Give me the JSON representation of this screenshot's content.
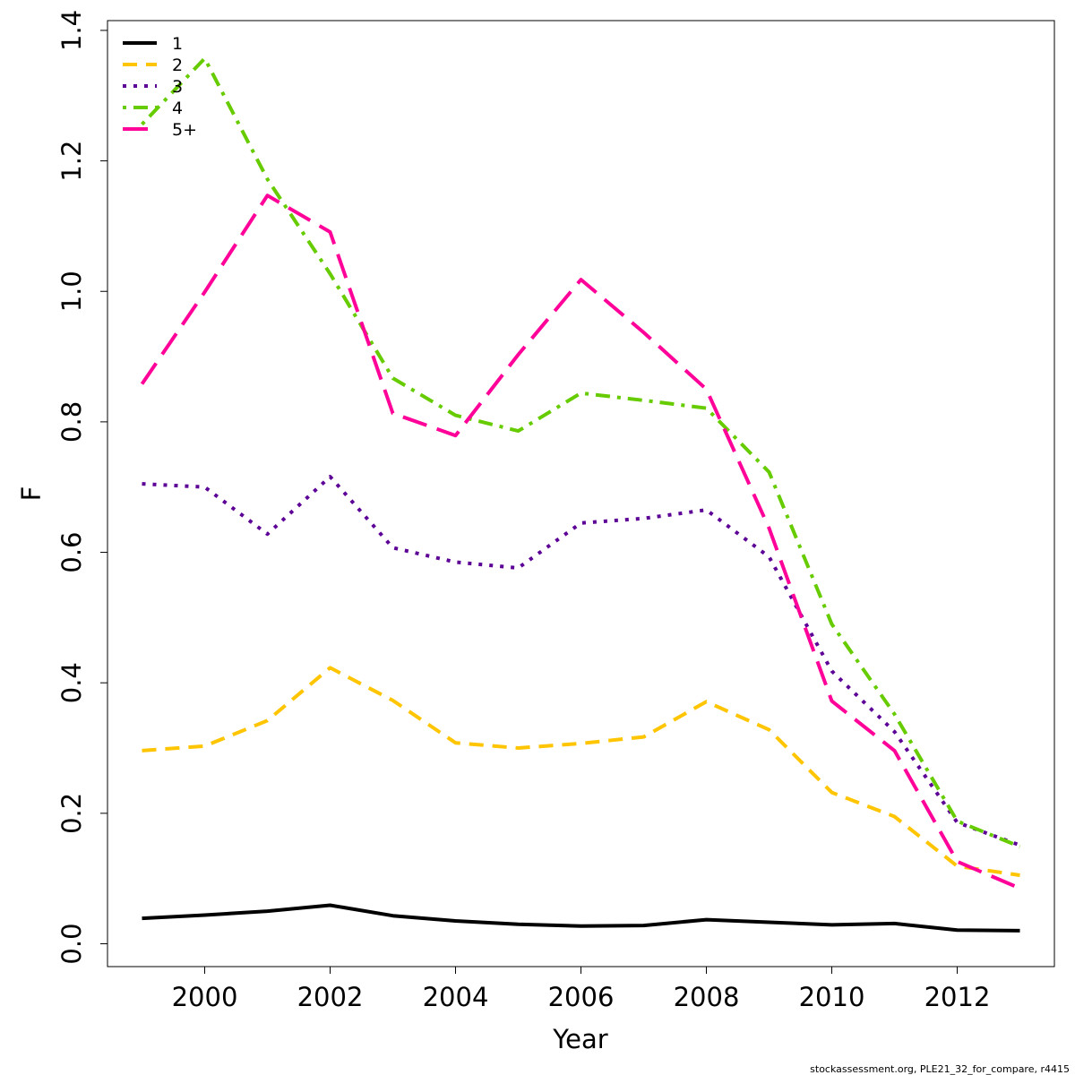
{
  "chart_data": {
    "type": "line",
    "xlabel": "Year",
    "ylabel": "F",
    "xlim": [
      1998.45,
      2013.55
    ],
    "ylim": [
      -0.035,
      1.415
    ],
    "x_ticks": [
      2000,
      2002,
      2004,
      2006,
      2008,
      2010,
      2012
    ],
    "x_tick_labels": [
      "2000",
      "2002",
      "2004",
      "2006",
      "2008",
      "2010",
      "2012"
    ],
    "y_ticks": [
      0.0,
      0.2,
      0.4,
      0.6,
      0.8,
      1.0,
      1.2,
      1.4
    ],
    "y_tick_labels": [
      "0.0",
      "0.2",
      "0.4",
      "0.6",
      "0.8",
      "1.0",
      "1.2",
      "1.4"
    ],
    "grid": false,
    "legend_position": "top-left",
    "x": [
      1999,
      2000,
      2001,
      2002,
      2003,
      2004,
      2005,
      2006,
      2007,
      2008,
      2009,
      2010,
      2011,
      2012,
      2013
    ],
    "series": [
      {
        "name": "1",
        "color": "#000000",
        "dash": "solid",
        "values": [
          0.039,
          0.044,
          0.05,
          0.059,
          0.043,
          0.035,
          0.03,
          0.027,
          0.028,
          0.037,
          0.033,
          0.029,
          0.031,
          0.021,
          0.02
        ]
      },
      {
        "name": "2",
        "color": "#FFC500",
        "dash": "dashed",
        "values": [
          0.296,
          0.303,
          0.342,
          0.423,
          0.373,
          0.308,
          0.3,
          0.307,
          0.317,
          0.371,
          0.328,
          0.232,
          0.195,
          0.119,
          0.105
        ]
      },
      {
        "name": "3",
        "color": "#5C0096",
        "dash": "dotted",
        "values": [
          0.705,
          0.7,
          0.628,
          0.716,
          0.607,
          0.585,
          0.576,
          0.645,
          0.652,
          0.665,
          0.593,
          0.418,
          0.325,
          0.186,
          0.151
        ]
      },
      {
        "name": "4",
        "color": "#66CC00",
        "dash": "dotdash",
        "values": [
          1.256,
          1.357,
          1.172,
          1.027,
          0.867,
          0.81,
          0.786,
          0.844,
          0.833,
          0.821,
          0.723,
          0.49,
          0.352,
          0.188,
          0.149
        ]
      },
      {
        "name": "5+",
        "color": "#FF0099",
        "dash": "longdash",
        "values": [
          0.858,
          0.999,
          1.147,
          1.091,
          0.813,
          0.779,
          0.903,
          1.018,
          0.937,
          0.85,
          0.637,
          0.372,
          0.296,
          0.126,
          0.085
        ]
      }
    ],
    "footer": "stockassessment.org, PLE21_32_for_compare, r4415"
  }
}
